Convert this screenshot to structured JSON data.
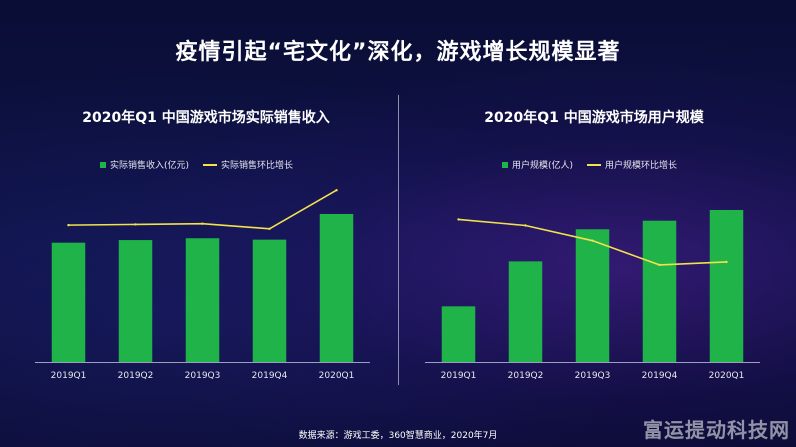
{
  "slide": {
    "title": "疫情引起“宅文化”深化，游戏增长规模显著",
    "footer": "数据来源：游戏工委，360智慧商业，2020年7月",
    "watermark": "富运提动科技网"
  },
  "colors": {
    "bar": "#1fb349",
    "line": "#f2e24b",
    "axis": "#9aa0c0",
    "text": "#e6e6ee"
  },
  "chart_data": [
    {
      "type": "bar",
      "title": "2020年Q1 中国游戏市场实际销售收入",
      "categories": [
        "2019Q1",
        "2019Q2",
        "2019Q3",
        "2019Q4",
        "2020Q1"
      ],
      "legend": {
        "bar": "实际销售收入(亿元)",
        "line": "实际销售环比增长",
        "placement": "top"
      },
      "series": [
        {
          "name": "实际销售收入(亿元)",
          "kind": "bar",
          "values": [
            590,
            603,
            612,
            605,
            732
          ]
        },
        {
          "name": "实际销售环比增长",
          "kind": "line",
          "values": [
            0.38,
            0.39,
            0.4,
            0.33,
            0.86
          ]
        }
      ],
      "ylim_bar": [
        0,
        900
      ],
      "ylim_line": [
        -1.5,
        1.0
      ],
      "grid": false
    },
    {
      "type": "bar",
      "title": "2020年Q1 中国游戏市场用户规模",
      "categories": [
        "2019Q1",
        "2019Q2",
        "2019Q3",
        "2019Q4",
        "2020Q1"
      ],
      "legend": {
        "bar": "用户规模(亿人)",
        "line": "用户规模环比增长",
        "placement": "top"
      },
      "series": [
        {
          "name": "用户规模(亿人)",
          "kind": "bar",
          "values": [
            2.6,
            4.7,
            6.2,
            6.6,
            7.1
          ]
        },
        {
          "name": "用户规模环比增长",
          "kind": "line",
          "values": [
            0.85,
            0.75,
            0.5,
            0.1,
            0.15
          ]
        }
      ],
      "ylim_bar": [
        0,
        8.5
      ],
      "ylim_line": [
        -1.5,
        1.5
      ],
      "grid": false
    }
  ]
}
